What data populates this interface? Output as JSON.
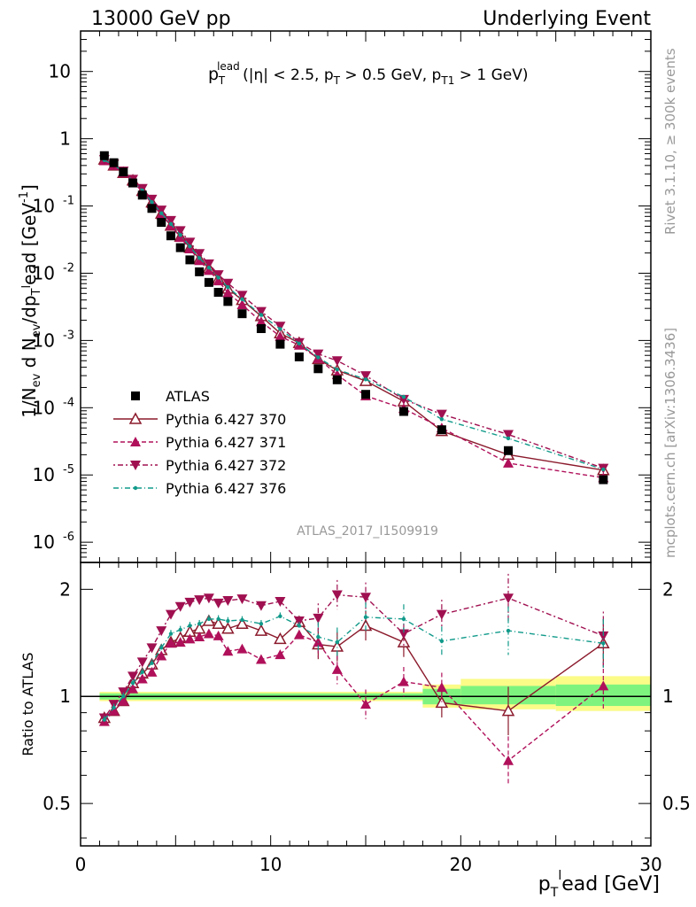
{
  "header": {
    "left": "13000 GeV pp",
    "right": "Underlying Event"
  },
  "side_labels": {
    "rivet": "Rivet 3.1.10, ≥ 300k events",
    "mcplots": "mcplots.cern.ch [arXiv:1306.3436]"
  },
  "analysis_tag": "ATLAS_2017_I1509919",
  "top_title": {
    "p": "p",
    "sup": "lead",
    "sub": "T",
    "rest1": "(|η| < 2.5, p",
    "sub2": "T",
    "rest2": " > 0.5 GeV, p",
    "sub3": "T1",
    "rest3": " > 1 GeV)"
  },
  "ylabel_top": "1/N_ev d N_ev/dp_T^lead [GeV^-1]",
  "ylabel_bottom": "Ratio to ATLAS",
  "xlabel": "p_T^lead [GeV]",
  "colors": {
    "data": "#000000",
    "p370": "#8b1a2c",
    "p371": "#b0105a",
    "p372": "#a01050",
    "p376": "#119a8a",
    "band_inner": "#7ef47e",
    "band_outer": "#fbfb88"
  },
  "legend": [
    {
      "key": "data",
      "label": "ATLAS"
    },
    {
      "key": "p370",
      "label": "Pythia 6.427 370"
    },
    {
      "key": "p371",
      "label": "Pythia 6.427 371"
    },
    {
      "key": "p372",
      "label": "Pythia 6.427 372"
    },
    {
      "key": "p376",
      "label": "Pythia 6.427 376"
    }
  ],
  "chart_data": [
    {
      "type": "scatter",
      "title": "p_T^lead (|eta| < 2.5, p_T > 0.5 GeV, p_T1 > 1 GeV)",
      "xlabel": "p_T^lead [GeV]",
      "ylabel": "1/N_ev d N_ev/dp_T^lead [GeV^-1]",
      "xlim": [
        0,
        30
      ],
      "ylim": [
        5e-07,
        40
      ],
      "yscale": "log",
      "x_ticks": [
        0,
        10,
        20,
        30
      ],
      "y_ticks": [
        "10^-6",
        "10^-5",
        "10^-4",
        "10^-3",
        "10^-2",
        "10^-1",
        "1",
        "10"
      ],
      "x": [
        1.25,
        1.75,
        2.25,
        2.75,
        3.25,
        3.75,
        4.25,
        4.75,
        5.25,
        5.75,
        6.25,
        6.75,
        7.25,
        7.75,
        8.5,
        9.5,
        10.5,
        11.5,
        12.5,
        13.5,
        15.0,
        17.0,
        19.0,
        22.5,
        27.5
      ],
      "series": [
        {
          "name": "ATLAS",
          "values": [
            0.56,
            0.44,
            0.32,
            0.22,
            0.145,
            0.092,
            0.057,
            0.036,
            0.024,
            0.0158,
            0.0105,
            0.0073,
            0.0052,
            0.0038,
            0.0025,
            0.0015,
            0.00088,
            0.00057,
            0.00038,
            0.00026,
            0.000158,
            8.8e-05,
            4.7e-05,
            2.3e-05,
            8.5e-06
          ]
        },
        {
          "name": "Pythia 6.427 370",
          "values": [
            0.49,
            0.4,
            0.31,
            0.24,
            0.168,
            0.113,
            0.077,
            0.051,
            0.035,
            0.024,
            0.0163,
            0.0119,
            0.0083,
            0.0059,
            0.004,
            0.0023,
            0.00128,
            0.00092,
            0.00053,
            0.00036,
            0.00025,
            0.000125,
            4.5e-05,
            2e-05,
            1.18e-05
          ]
        },
        {
          "name": "Pythia 6.427 371",
          "values": [
            0.47,
            0.4,
            0.31,
            0.23,
            0.163,
            0.108,
            0.074,
            0.051,
            0.034,
            0.023,
            0.0154,
            0.011,
            0.0077,
            0.0051,
            0.0034,
            0.0019,
            0.00115,
            0.00085,
            0.00054,
            0.00031,
            0.00015,
            9.7e-05,
            5e-05,
            1.5e-05,
            9.1e-06
          ]
        },
        {
          "name": "Pythia 6.427 372",
          "values": [
            0.49,
            0.42,
            0.33,
            0.25,
            0.182,
            0.126,
            0.087,
            0.061,
            0.043,
            0.029,
            0.0196,
            0.0138,
            0.0095,
            0.0071,
            0.0047,
            0.0027,
            0.00163,
            0.00093,
            0.00063,
            0.0005,
            0.0003,
            0.000133,
            8e-05,
            4e-05,
            1.26e-05
          ]
        },
        {
          "name": "Pythia 6.427 376",
          "values": [
            0.48,
            0.41,
            0.32,
            0.24,
            0.17,
            0.114,
            0.078,
            0.054,
            0.037,
            0.025,
            0.0168,
            0.0121,
            0.0086,
            0.0062,
            0.0041,
            0.0024,
            0.00148,
            0.0009,
            0.00056,
            0.00037,
            0.000264,
            0.000145,
            6.75e-05,
            3.5e-05,
            1.21e-05
          ]
        }
      ],
      "legend": [
        "ATLAS",
        "Pythia 6.427 370",
        "Pythia 6.427 371",
        "Pythia 6.427 372",
        "Pythia 6.427 376"
      ]
    },
    {
      "type": "line",
      "ylabel": "Ratio to ATLAS",
      "xlim": [
        0,
        30
      ],
      "ylim": [
        0.38,
        2.38
      ],
      "yscale": "log",
      "y_ticks": [
        "0.5",
        "1",
        "2"
      ],
      "x": [
        1.25,
        1.75,
        2.25,
        2.75,
        3.25,
        3.75,
        4.25,
        4.75,
        5.25,
        5.75,
        6.25,
        6.75,
        7.25,
        7.75,
        8.5,
        9.5,
        10.5,
        11.5,
        12.5,
        13.5,
        15.0,
        17.0,
        19.0,
        22.5,
        27.5
      ],
      "series": [
        {
          "name": "Pythia 6.427 370",
          "values": [
            0.87,
            0.91,
            0.97,
            1.09,
            1.16,
            1.23,
            1.35,
            1.42,
            1.46,
            1.52,
            1.55,
            1.63,
            1.6,
            1.55,
            1.6,
            1.53,
            1.45,
            1.62,
            1.4,
            1.38,
            1.58,
            1.42,
            0.96,
            0.91,
            1.41
          ]
        },
        {
          "name": "Pythia 6.427 371",
          "values": [
            0.85,
            0.91,
            0.97,
            1.05,
            1.12,
            1.17,
            1.3,
            1.41,
            1.42,
            1.45,
            1.47,
            1.5,
            1.48,
            1.34,
            1.36,
            1.27,
            1.31,
            1.49,
            1.42,
            1.19,
            0.95,
            1.1,
            1.06,
            0.66,
            1.07
          ]
        },
        {
          "name": "Pythia 6.427 372",
          "values": [
            0.87,
            0.95,
            1.03,
            1.14,
            1.25,
            1.37,
            1.53,
            1.7,
            1.79,
            1.84,
            1.87,
            1.89,
            1.83,
            1.86,
            1.88,
            1.8,
            1.85,
            1.63,
            1.66,
            1.93,
            1.9,
            1.5,
            1.7,
            1.89,
            1.48
          ]
        },
        {
          "name": "Pythia 6.427 376",
          "values": [
            0.86,
            0.93,
            1.0,
            1.09,
            1.17,
            1.24,
            1.37,
            1.5,
            1.54,
            1.58,
            1.6,
            1.65,
            1.65,
            1.63,
            1.64,
            1.6,
            1.68,
            1.58,
            1.47,
            1.42,
            1.67,
            1.65,
            1.43,
            1.53,
            1.41
          ]
        }
      ],
      "reference_band": {
        "inner": [
          0.98,
          1.02
        ],
        "outer": [
          0.97,
          1.03
        ]
      }
    }
  ]
}
